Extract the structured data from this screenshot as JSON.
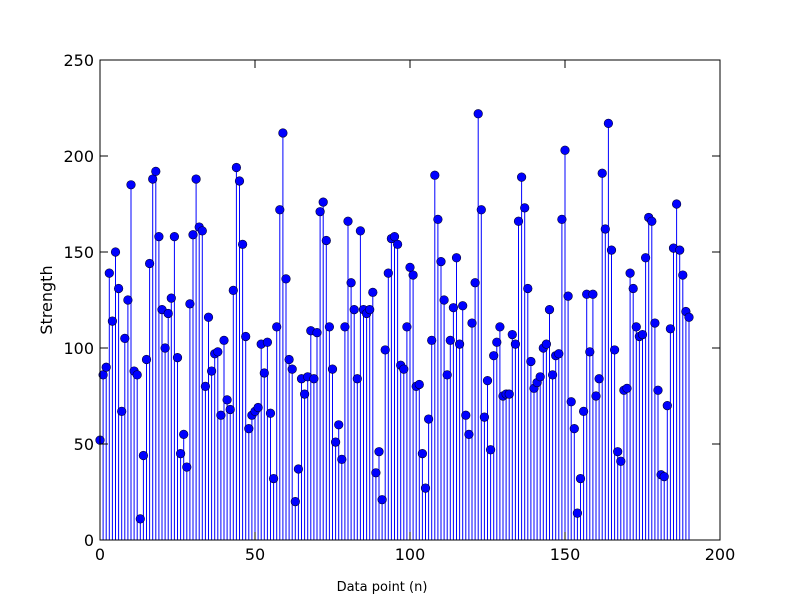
{
  "chart_data": {
    "type": "stem",
    "title": "",
    "xlabel": "Data point (n)",
    "ylabel": "Strength",
    "xlim": [
      0,
      200
    ],
    "ylim": [
      0,
      250
    ],
    "x_ticks": [
      0,
      50,
      100,
      150,
      200
    ],
    "y_ticks": [
      0,
      50,
      100,
      150,
      200,
      250
    ],
    "grid": false,
    "color": "#0000ff",
    "series": [
      {
        "x": [
          0,
          1,
          2,
          3,
          4,
          5,
          6,
          7,
          8,
          9,
          10,
          11,
          12,
          13,
          14,
          15,
          16,
          17,
          18,
          19,
          20,
          21,
          22,
          23,
          24,
          25,
          26,
          27,
          28,
          29,
          30,
          31,
          32,
          33,
          34,
          35,
          36,
          37,
          38,
          39,
          40,
          41,
          42,
          43,
          44,
          45,
          46,
          47,
          48,
          49,
          50,
          51,
          52,
          53,
          54,
          55,
          56,
          57,
          58,
          59,
          60,
          61,
          62,
          63,
          64,
          65,
          66,
          67,
          68,
          69,
          70,
          71,
          72,
          73,
          74,
          75,
          76,
          77,
          78,
          79,
          80,
          81,
          82,
          83,
          84,
          85,
          86,
          87,
          88,
          89,
          90,
          91,
          92,
          93,
          94,
          95,
          96,
          97,
          98,
          99,
          100,
          101,
          102,
          103,
          104,
          105,
          106,
          107,
          108,
          109,
          110,
          111,
          112,
          113,
          114,
          115,
          116,
          117,
          118,
          119,
          120,
          121,
          122,
          123,
          124,
          125,
          126,
          127,
          128,
          129,
          130,
          131,
          132,
          133,
          134,
          135,
          136,
          137,
          138,
          139,
          140,
          141,
          142,
          143,
          144,
          145,
          146,
          147,
          148,
          149,
          150,
          151,
          152,
          153,
          154,
          155,
          156,
          157,
          158,
          159,
          160,
          161,
          162,
          163,
          164,
          165,
          166,
          167,
          168,
          169,
          170,
          171,
          172,
          173,
          174,
          175,
          176,
          177,
          178,
          179,
          180,
          181,
          182,
          183,
          184,
          185,
          186,
          187,
          188,
          189,
          190
        ],
        "values": [
          52,
          86,
          90,
          139,
          114,
          150,
          131,
          67,
          105,
          125,
          185,
          88,
          86,
          11,
          44,
          94,
          144,
          188,
          192,
          158,
          120,
          100,
          118,
          126,
          158,
          95,
          45,
          55,
          38,
          123,
          159,
          188,
          163,
          161,
          80,
          116,
          88,
          97,
          98,
          65,
          104,
          73,
          68,
          130,
          194,
          187,
          154,
          106,
          58,
          65,
          67,
          69,
          102,
          87,
          103,
          66,
          32,
          111,
          172,
          212,
          136,
          94,
          89,
          20,
          37,
          84,
          76,
          85,
          109,
          84,
          108,
          171,
          176,
          156,
          111,
          89,
          51,
          60,
          42,
          111,
          166,
          134,
          120,
          84,
          161,
          120,
          118,
          120,
          129,
          35,
          46,
          21,
          99,
          139,
          157,
          158,
          154,
          91,
          89,
          111,
          142,
          138,
          80,
          81,
          45,
          27,
          63,
          104,
          190,
          167,
          145,
          125,
          86,
          104,
          121,
          147,
          102,
          122,
          65,
          55,
          113,
          134,
          222,
          172,
          64,
          83,
          47,
          96,
          103,
          111,
          75,
          76,
          76,
          107,
          102,
          166,
          189,
          173,
          131,
          93,
          79,
          82,
          85,
          100,
          102,
          120,
          86,
          96,
          97,
          167,
          203,
          127,
          72,
          58,
          14,
          32,
          67,
          128,
          98,
          128,
          75,
          84,
          191,
          162,
          217,
          151,
          99,
          46,
          41,
          78,
          79,
          139,
          131,
          111,
          106,
          107,
          147,
          168,
          166,
          113,
          78,
          34,
          33,
          70,
          110,
          152,
          175,
          151,
          138,
          119,
          116
        ]
      }
    ]
  }
}
